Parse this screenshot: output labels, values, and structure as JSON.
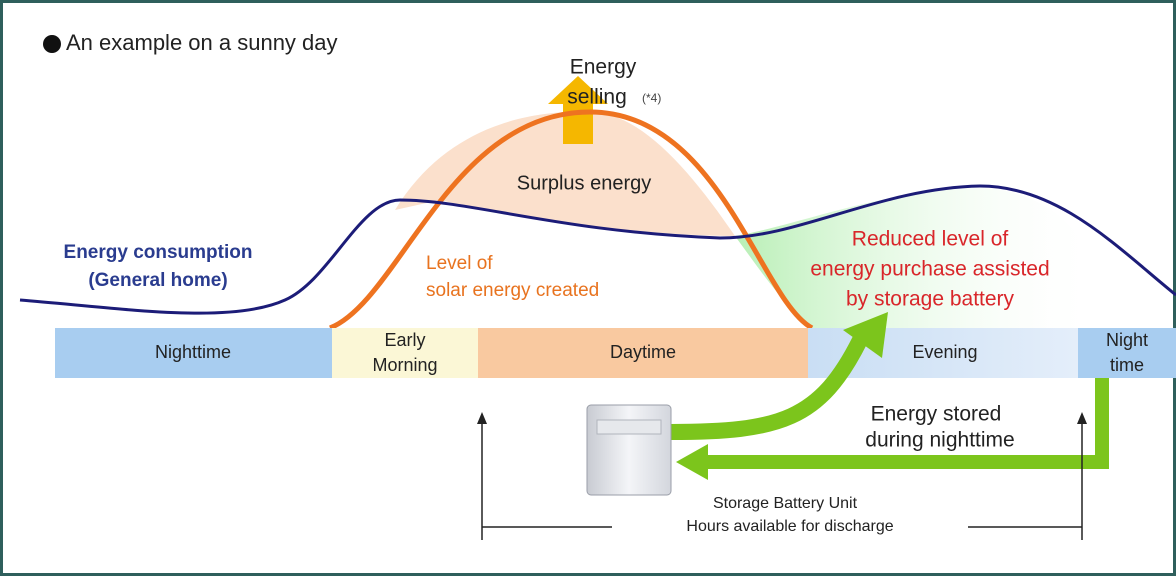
{
  "heading": "An example on a sunny day",
  "energy_selling": {
    "lines": [
      "Energy",
      "selling"
    ],
    "note": "(*4)"
  },
  "surplus_energy": "Surplus energy",
  "consumption": {
    "lines": [
      "Energy consumption",
      "(General home)"
    ]
  },
  "solar": {
    "lines": [
      "Level of",
      "solar energy created"
    ]
  },
  "reduced": {
    "lines": [
      "Reduced level of",
      "energy purchase assisted",
      "by storage battery"
    ]
  },
  "periods": [
    {
      "lines": [
        "Nighttime"
      ]
    },
    {
      "lines": [
        "Early",
        "Morning"
      ]
    },
    {
      "lines": [
        "Daytime"
      ]
    },
    {
      "lines": [
        "Evening"
      ]
    },
    {
      "lines": [
        "Night",
        "time"
      ]
    }
  ],
  "stored": {
    "lines": [
      "Energy stored",
      "during nighttime"
    ]
  },
  "battery_label": "Storage Battery Unit",
  "discharge_label": "Hours available for discharge"
}
